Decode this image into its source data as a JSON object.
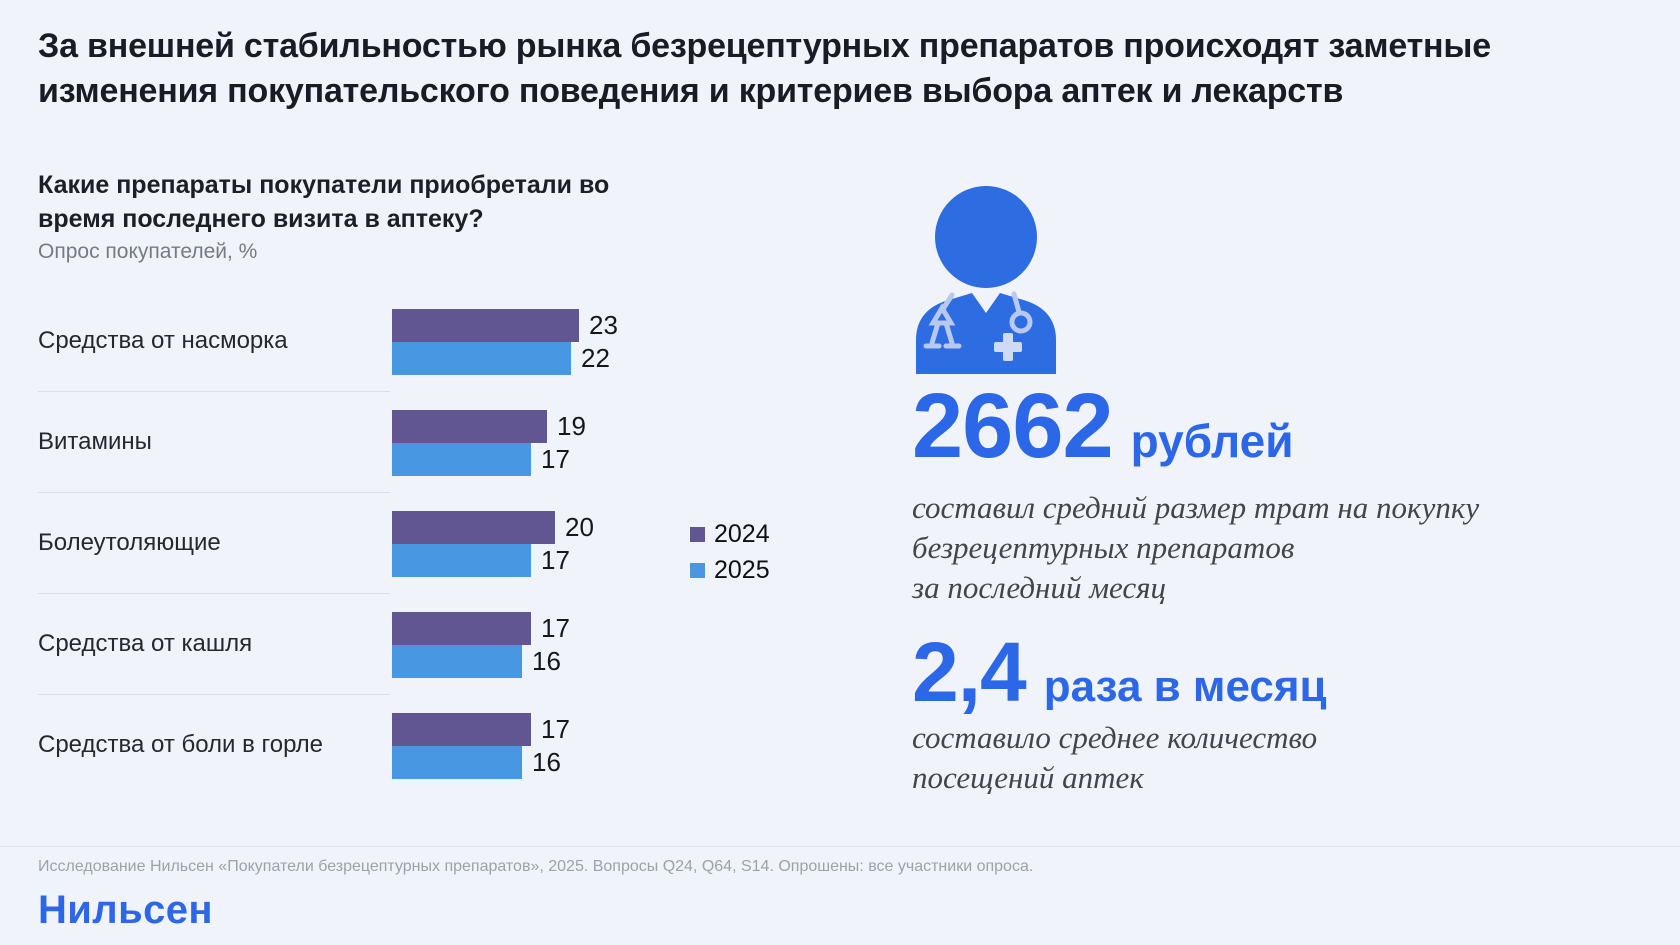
{
  "title": "За внешней стабильностью рынка безрецептурных препаратов происходят заметные изменения покупательского поведения и критериев выбора аптек и лекарств",
  "chart": {
    "question": "Какие препараты покупатели приобретали во время последнего визита в аптеку?",
    "subtitle": "Опрос покупателей, %"
  },
  "chart_data": {
    "type": "bar",
    "orientation": "horizontal",
    "title": "Какие препараты покупатели приобретали во время последнего визита в аптеку?",
    "unit": "%",
    "categories": [
      "Средства от насморка",
      "Витамины",
      "Болеутоляющие",
      "Средства от кашля",
      "Средства от боли в горле"
    ],
    "series": [
      {
        "name": "2024",
        "color": "#615691",
        "values": [
          23,
          19,
          20,
          17,
          17
        ]
      },
      {
        "name": "2025",
        "color": "#4897e2",
        "values": [
          22,
          17,
          17,
          16,
          16
        ]
      }
    ],
    "xlim": [
      0,
      23
    ],
    "legend_position": "right",
    "grid": false
  },
  "stats": [
    {
      "value": "2662",
      "unit": "рублей",
      "lines": [
        "составил средний размер трат на покупку",
        "безрецептурных препаратов",
        "за последний месяц"
      ]
    },
    {
      "value": "2,4",
      "unit": "раза в месяц",
      "lines": [
        "составило среднее количество",
        "посещений аптек"
      ]
    }
  ],
  "icons": {
    "doctor": "doctor-icon"
  },
  "footer": {
    "source": "Исследование Нильсен «Покупатели безрецептурных препаратов», 2025. Вопросы Q24, Q64, S14. Опрошены: все участники опроса.",
    "logo": "Нильсен"
  },
  "colors": {
    "background": "#f0f3f9",
    "accent_blue": "#2c67e7",
    "bar_2024": "#615691",
    "bar_2025": "#4897e2",
    "icon_blue": "#2e6ce2",
    "icon_light": "#b7c9f0"
  }
}
